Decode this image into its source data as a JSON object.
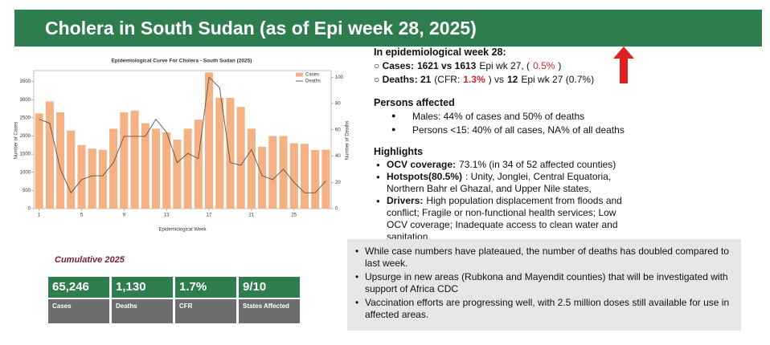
{
  "header": {
    "title": "Cholera in South Sudan (as of Epi week 28, 2025)"
  },
  "chart_data": {
    "type": "bar",
    "title": "Epidemiological Curve For Cholera - South Sudan (2025)",
    "x_label": "Epidemiological Week",
    "y_label": "Number of Cases",
    "y2_label": "Number of Deaths",
    "categories": [
      "1",
      null,
      null,
      null,
      "5",
      null,
      null,
      null,
      "9",
      null,
      null,
      null,
      "13",
      null,
      null,
      null,
      "17",
      null,
      null,
      null,
      "21",
      null,
      null,
      null,
      "25",
      null,
      null,
      null
    ],
    "series": [
      {
        "name": "Cases",
        "color": "#f4b183",
        "values": [
          2620,
          2950,
          2650,
          2150,
          1750,
          1650,
          1620,
          2200,
          2650,
          2700,
          2350,
          2200,
          2100,
          1900,
          2200,
          2450,
          3750,
          3050,
          3050,
          2800,
          2200,
          1700,
          2000,
          2000,
          1800,
          1780,
          1613,
          1621
        ]
      },
      {
        "name": "Deaths",
        "color": "#555555",
        "type": "line",
        "axis": "y2",
        "values": [
          68,
          65,
          30,
          12,
          22,
          25,
          25,
          35,
          55,
          55,
          55,
          68,
          58,
          35,
          42,
          38,
          100,
          92,
          35,
          33,
          45,
          25,
          22,
          30,
          20,
          12,
          12,
          21
        ]
      }
    ],
    "ylim": [
      0,
      3800
    ],
    "yticks": [
      0,
      500,
      1000,
      1500,
      2000,
      2500,
      3000,
      3500
    ],
    "y2lim": [
      0,
      105
    ],
    "y2ticks": [
      0,
      20,
      40,
      60,
      80,
      100
    ],
    "legend": "upper right"
  },
  "week_summary": {
    "heading": "In epidemiological week 28:",
    "lines": [
      [
        {
          "text": "Cases:",
          "bold": true
        },
        {
          "text": "1621 vs 1613",
          "bold": true
        },
        {
          "text": "Epi wk 27, ("
        },
        {
          "text": "0.5%",
          "red": true
        },
        {
          "text": ")"
        }
      ],
      [
        {
          "text": "Deaths: 21",
          "bold": true
        },
        {
          "text": "(CFR:"
        },
        {
          "text": "1.3%",
          "red": true,
          "bold": true
        },
        {
          "text": ") vs"
        },
        {
          "text": "12",
          "bold": true
        },
        {
          "text": "Epi wk 27 (0.7%)"
        }
      ]
    ]
  },
  "persons_affected": {
    "heading": "Persons affected",
    "items": [
      "Males: 44% of cases and 50% of deaths",
      "Persons <15: 40% of all cases, NA% of all deaths"
    ]
  },
  "highlights": {
    "heading": "Highlights",
    "items": [
      {
        "label": "OCV coverage:",
        "text": "73.1% (in 34 of 52 affected counties)"
      },
      {
        "label": "Hotspots(80.5%)",
        "text": ": Unity, Jonglei, Central Equatoria, Northern Bahr el Ghazal, and Upper Nile states,"
      },
      {
        "label": "Drivers:",
        "text": "High population displacement from floods and conflict; Fragile or non-functional health services;  Low OCV coverage; Inadequate access to clean water and sanitation."
      }
    ]
  },
  "cumulative": {
    "title": "Cumulative 2025",
    "stats": [
      {
        "value": "65,246",
        "label": "Cases"
      },
      {
        "value": "1,130",
        "label": "Deaths"
      },
      {
        "value": "1.7%",
        "label": "CFR"
      },
      {
        "value": "9/10",
        "label": "States Affected"
      }
    ]
  },
  "notes": {
    "items": [
      "While case numbers have plateaued, the number of deaths has doubled compared to last week.",
      "Upsurge in new areas (Rubkona and Mayendit counties) that will be investigated with support of Africa CDC",
      "Vaccination efforts are progressing well, with 2.5 million doses still available for use in affected areas."
    ]
  }
}
